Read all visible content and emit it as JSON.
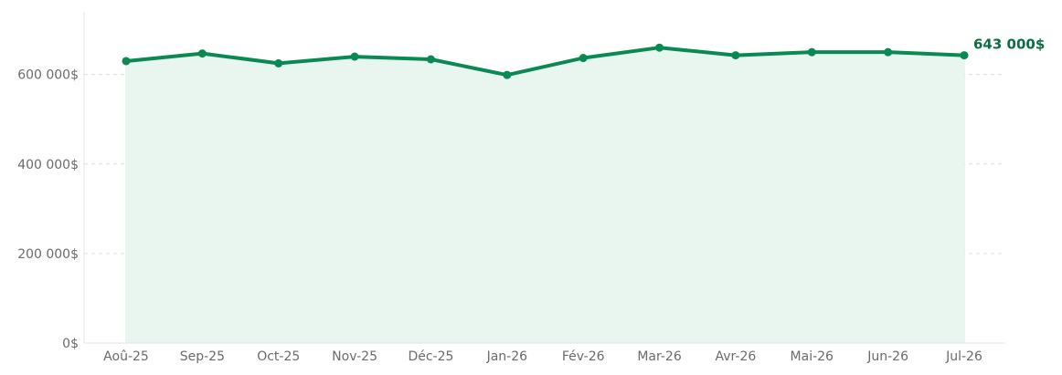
{
  "chart_data": {
    "type": "area",
    "title": "",
    "xlabel": "",
    "ylabel": "",
    "categories": [
      "Aoû-25",
      "Sep-25",
      "Oct-25",
      "Nov-25",
      "Déc-25",
      "Jan-26",
      "Fév-26",
      "Mar-26",
      "Avr-26",
      "Mai-26",
      "Jun-26",
      "Jul-26"
    ],
    "series": [
      {
        "values": [
          630000,
          647000,
          625000,
          640000,
          634000,
          599000,
          637000,
          660000,
          643000,
          650000,
          650000,
          643000
        ]
      }
    ],
    "ylim": [
      0,
      740000
    ],
    "yticks": [
      0,
      200000,
      400000,
      600000
    ],
    "ytick_labels": [
      "0$",
      "200 000$",
      "400 000$",
      "600 000$"
    ],
    "end_label": "643 000$",
    "grid": "horizontal dashed",
    "legend": "none",
    "colors": {
      "line": "#0a8a52",
      "area": "#e9f5ef",
      "end_label": "#0b6e42",
      "grid": "#d9e4de",
      "axis": "#e3e3e3",
      "tick_text": "#6b6b6b"
    }
  }
}
